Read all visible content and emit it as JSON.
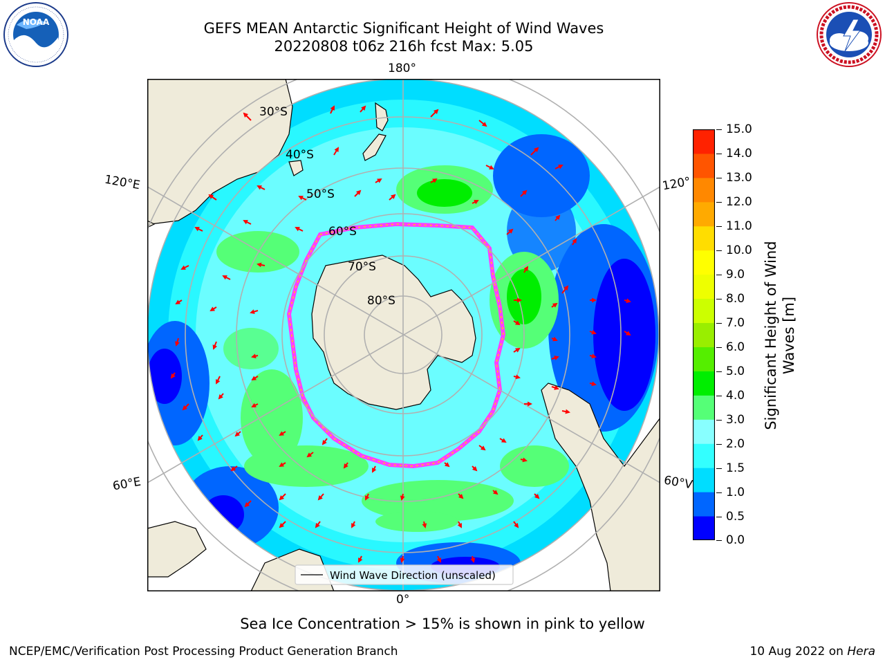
{
  "header": {
    "title_line1": "GEFS MEAN Antarctic Significant Height of Wind Waves",
    "title_line2": "20220808 t06z 216h fcst   Max: 5.05"
  },
  "logos": {
    "left": {
      "icon": "noaa-logo",
      "text": "NOAA",
      "ring_text": "NATIONAL OCEANIC AND ATMOSPHERIC ADMINISTRATION · U.S. DEPARTMENT OF COMMERCE"
    },
    "right": {
      "icon": "nws-logo",
      "ring_text": "NATIONAL WEATHER SERVICE"
    }
  },
  "map": {
    "projection": "south-polar-stereographic",
    "longitude_labels": {
      "top": "180°",
      "bottom": "0°",
      "left_upper": "120°E",
      "left_lower": "60°E",
      "right_upper": "120°",
      "right_lower": "60°V"
    },
    "latitude_labels": [
      "30°S",
      "40°S",
      "50°S",
      "60°S",
      "70°S",
      "80°S"
    ],
    "legend_label": "Wind Wave Direction (unscaled)",
    "colors": {
      "land": "#efebda",
      "ice_edge_pink": "#ff40ff",
      "ice_edge_yellow": "#ffd000",
      "vector": "#ff0000",
      "grid": "#b0b0b0"
    }
  },
  "colorbar": {
    "label": "Significant Height of Wind Waves [m]",
    "label_line1": "Significant Height of Wind",
    "label_line2": "Waves [m]",
    "ticks": [
      "15.0",
      "14.0",
      "13.0",
      "12.0",
      "11.0",
      "10.0",
      "9.0",
      "8.0",
      "7.0",
      "6.0",
      "5.0",
      "4.0",
      "3.0",
      "2.0",
      "1.5",
      "1.0",
      "0.5",
      "0.0"
    ],
    "colors_bottom_to_top": [
      "#0000ff",
      "#0066ff",
      "#00ddff",
      "#33ffff",
      "#88ffff",
      "#55ff77",
      "#00ee00",
      "#55ee00",
      "#99ee00",
      "#ccff00",
      "#eeff00",
      "#ffff00",
      "#ffdd00",
      "#ffaa00",
      "#ff8800",
      "#ff5500",
      "#ff2200"
    ]
  },
  "footer": {
    "note": "Sea Ice Concentration > 15% is shown in pink to yellow",
    "left": "NCEP/EMC/Verification Post Processing Product Generation Branch",
    "right_date": "10 Aug 2022 on",
    "right_host": "Hera"
  }
}
